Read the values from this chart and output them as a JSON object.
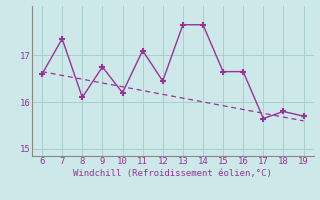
{
  "x": [
    6,
    7,
    8,
    9,
    10,
    11,
    12,
    13,
    14,
    15,
    16,
    17,
    18,
    19
  ],
  "y": [
    16.6,
    17.35,
    16.1,
    16.75,
    16.2,
    17.1,
    16.45,
    17.65,
    17.65,
    16.65,
    16.65,
    15.65,
    15.8,
    15.7
  ],
  "trend_x": [
    6,
    19
  ],
  "trend_y": [
    16.65,
    15.6
  ],
  "xlim": [
    5.5,
    19.5
  ],
  "ylim": [
    14.85,
    18.05
  ],
  "xticks": [
    6,
    7,
    8,
    9,
    10,
    11,
    12,
    13,
    14,
    15,
    16,
    17,
    18,
    19
  ],
  "yticks": [
    15,
    16,
    17
  ],
  "xlabel": "Windchill (Refroidissement éolien,°C)",
  "line_color": "#993399",
  "bg_color": "#cce8e8",
  "grid_color": "#aacece",
  "tick_color": "#993399",
  "label_color": "#993399",
  "font_size_label": 6.5,
  "font_size_tick": 6.5,
  "marker": "+",
  "markersize": 5,
  "markeredgewidth": 1.5,
  "linewidth": 1.0,
  "trend_linewidth": 0.9,
  "spine_color": "#888888"
}
